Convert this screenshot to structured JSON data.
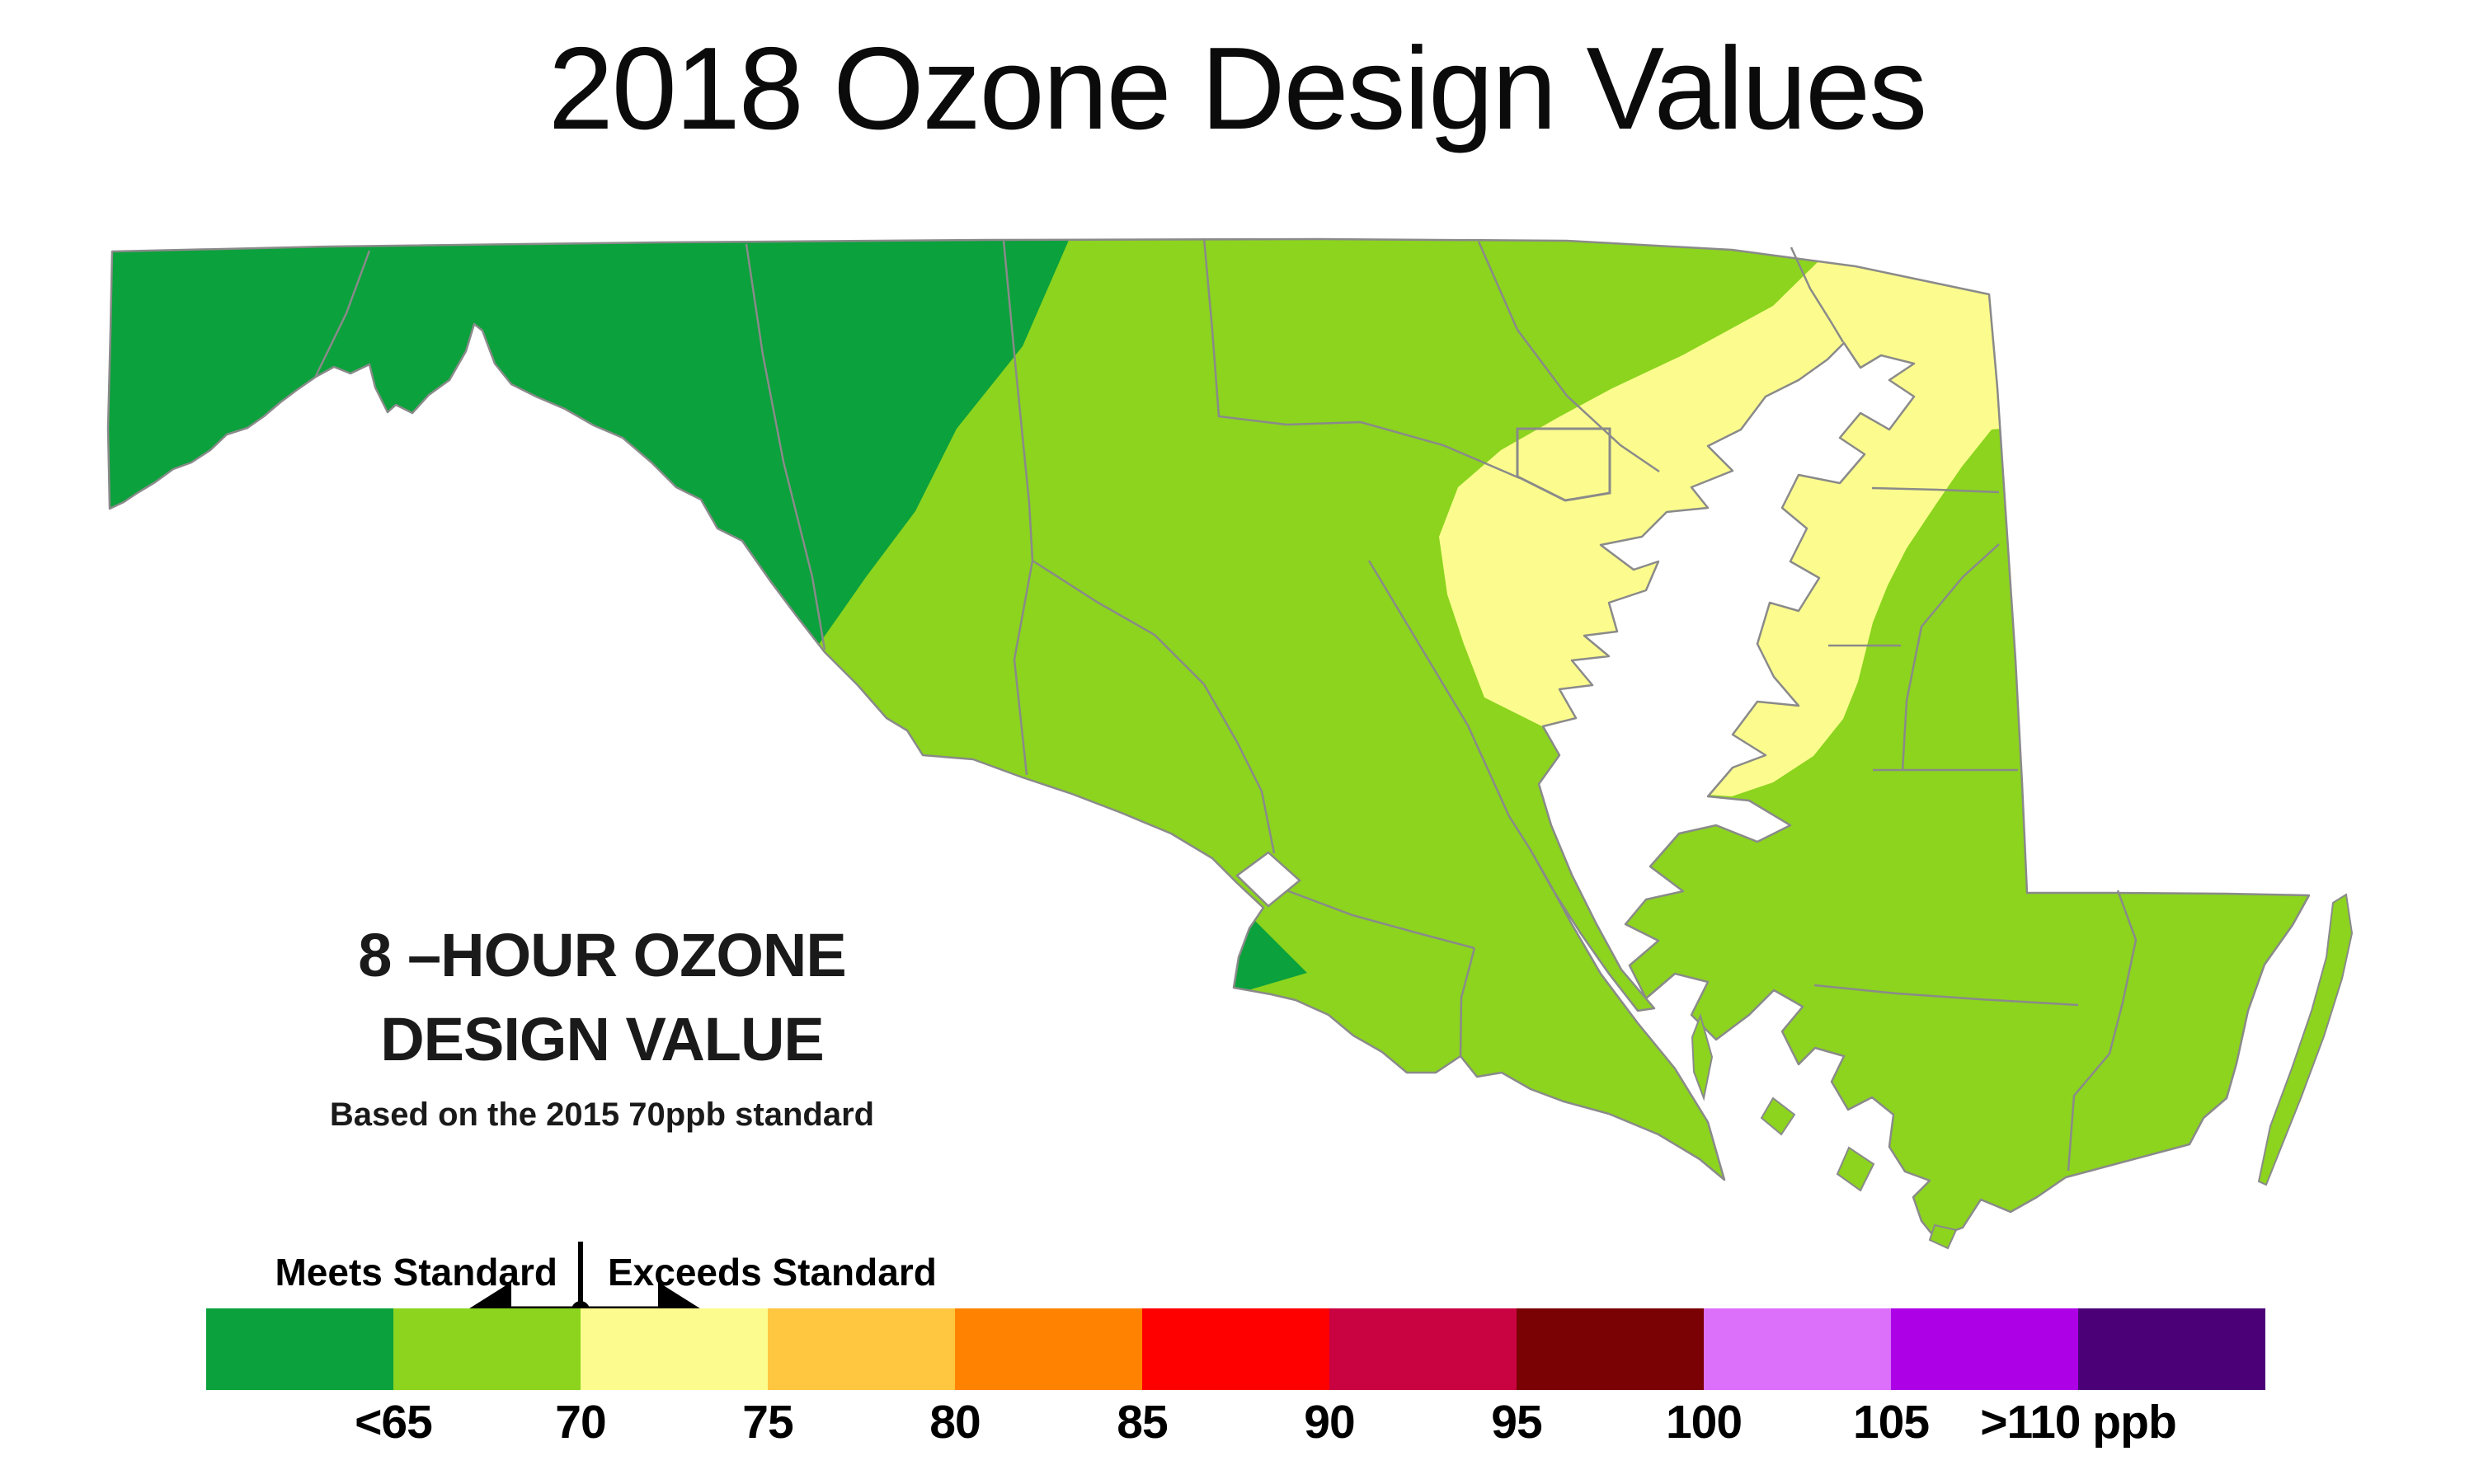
{
  "title": "2018 Ozone Design Values",
  "caption": {
    "line1": "8 –HOUR OZONE",
    "line2": "DESIGN VALUE",
    "line3": "Based on the 2015 70ppb standard"
  },
  "legend": {
    "meets_label": "Meets Standard",
    "exceeds_label": "Exceeds Standard",
    "swatches": [
      "#0BA13C",
      "#8CD41E",
      "#FCFC8E",
      "#FFC640",
      "#FF8300",
      "#FE0000",
      "#C90342",
      "#7A0104",
      "#DC70FB",
      "#AE00E6",
      "#4C0078"
    ],
    "tick_labels": [
      "<65",
      "70",
      "75",
      "80",
      "85",
      "90",
      "95",
      "100",
      "105",
      ">110 ppb"
    ]
  },
  "map_zones": [
    {
      "id": "western-maryland",
      "ppb_range": "<65",
      "color": "#0BA13C"
    },
    {
      "id": "central-and-eastern-shore",
      "ppb_range": "65-70",
      "color": "#8CD41E"
    },
    {
      "id": "baltimore-upper-chesapeake",
      "ppb_range": "70-75",
      "color": "#FCFC8E"
    },
    {
      "id": "southwest-charles-county",
      "ppb_range": "<65",
      "color": "#0BA13C"
    }
  ],
  "map_border_color": "#8a8a8a"
}
